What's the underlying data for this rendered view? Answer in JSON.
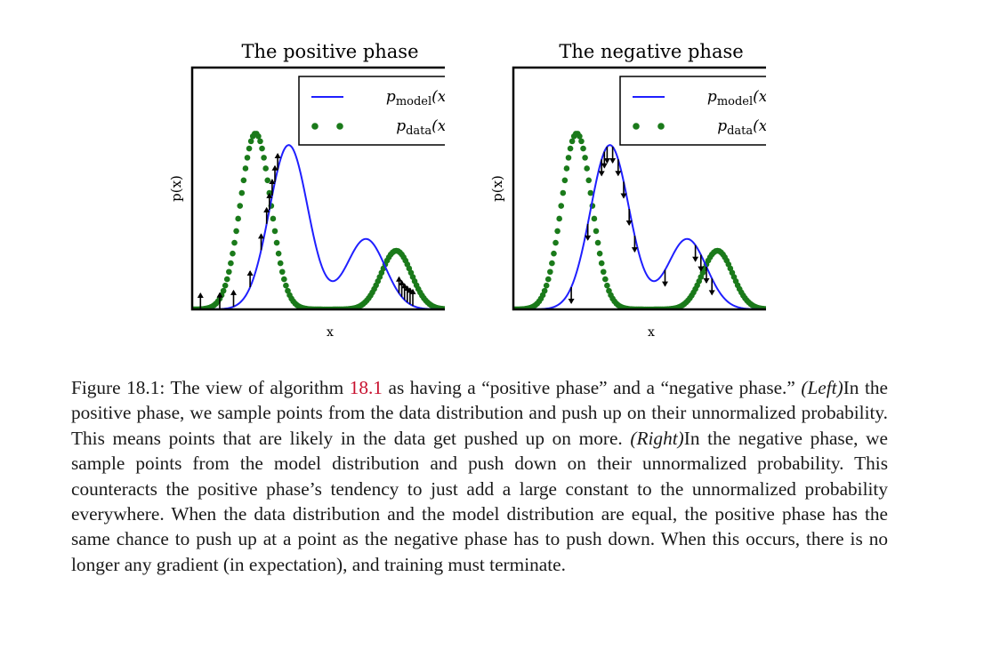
{
  "figure": {
    "panels": [
      {
        "id": "positive",
        "title": "The positive phase",
        "xlabel": "x",
        "ylabel": "p(x)",
        "legend": {
          "model": "p",
          "model_sub": "model",
          "data": "p",
          "data_sub": "data",
          "arg": "(x)"
        },
        "arrow_direction": "up"
      },
      {
        "id": "negative",
        "title": "The negative phase",
        "xlabel": "x",
        "ylabel": "p(x)",
        "legend": {
          "model": "p",
          "model_sub": "model",
          "data": "p",
          "data_sub": "data",
          "arg": "(x)"
        },
        "arrow_direction": "down"
      }
    ],
    "colors": {
      "model": "#1f1fff",
      "data": "#1a7a1a",
      "arrow": "#000000",
      "frame": "#000000",
      "ref": "#c8102e"
    }
  },
  "chart_data": [
    {
      "type": "line",
      "title": "The positive phase",
      "xlabel": "x",
      "ylabel": "p(x)",
      "xlim": [
        0,
        1
      ],
      "ylim": [
        0,
        1
      ],
      "legend": "top-right",
      "series": [
        {
          "name": "p_model(x)",
          "style": "line",
          "components": [
            {
              "mu": 0.35,
              "sigma": 0.07,
              "w": 0.7
            },
            {
              "mu": 0.63,
              "sigma": 0.07,
              "w": 0.3
            }
          ]
        },
        {
          "name": "p_data(x)",
          "style": "dots",
          "components": [
            {
              "mu": 0.23,
              "sigma": 0.055,
              "w": 0.75
            },
            {
              "mu": 0.74,
              "sigma": 0.055,
              "w": 0.25
            }
          ]
        }
      ],
      "arrows": {
        "direction": "up",
        "x": [
          0.03,
          0.1,
          0.15,
          0.21,
          0.25,
          0.27,
          0.28,
          0.29,
          0.3,
          0.31,
          0.75,
          0.76,
          0.77,
          0.78,
          0.79,
          0.8
        ]
      }
    },
    {
      "type": "line",
      "title": "The negative phase",
      "xlabel": "x",
      "ylabel": "p(x)",
      "xlim": [
        0,
        1
      ],
      "ylim": [
        0,
        1
      ],
      "legend": "top-right",
      "series": [
        {
          "name": "p_model(x)",
          "style": "line",
          "components": [
            {
              "mu": 0.35,
              "sigma": 0.07,
              "w": 0.7
            },
            {
              "mu": 0.63,
              "sigma": 0.07,
              "w": 0.3
            }
          ]
        },
        {
          "name": "p_data(x)",
          "style": "dots",
          "components": [
            {
              "mu": 0.23,
              "sigma": 0.055,
              "w": 0.75
            },
            {
              "mu": 0.74,
              "sigma": 0.055,
              "w": 0.25
            }
          ]
        }
      ],
      "arrows": {
        "direction": "down",
        "x": [
          0.21,
          0.27,
          0.32,
          0.33,
          0.34,
          0.36,
          0.38,
          0.4,
          0.42,
          0.44,
          0.55,
          0.66,
          0.68,
          0.7,
          0.72
        ]
      }
    }
  ],
  "caption": {
    "label": "Figure 18.1: The view of algorithm ",
    "ref": "18.1",
    "p1": " as having a “positive phase” and a “negative phase.” ",
    "left": "(Left)",
    "p2": "In the positive phase, we sample points from the data distribution and push up on their unnormalized probability. This means points that are likely in the data get pushed up on more. ",
    "right": "(Right)",
    "p3": "In the negative phase, we sample points from the model distribution and push down on their unnormalized probability. This counteracts the positive phase’s tendency to just add a large constant to the unnormalized probability everywhere. When the data distribution and the model distribution are equal, the positive phase has the same chance to push up at a point as the negative phase has to push down. When this occurs, there is no longer any gradient (in expectation), and training must terminate."
  }
}
